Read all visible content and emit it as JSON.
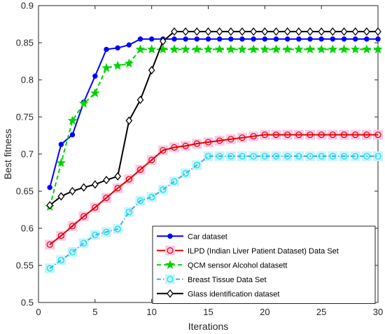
{
  "chart_data": {
    "type": "line",
    "xlabel": "Iterations",
    "ylabel": "Best fitness",
    "xlim": [
      0,
      30
    ],
    "ylim": [
      0.5,
      0.9
    ],
    "xticks": [
      0,
      5,
      10,
      15,
      20,
      25,
      30
    ],
    "yticks": [
      0.5,
      0.55,
      0.6,
      0.65,
      0.7,
      0.75,
      0.8,
      0.85,
      0.9
    ],
    "grid": false,
    "legend_position": "bottom-right",
    "x": [
      1,
      2,
      3,
      4,
      5,
      6,
      7,
      8,
      9,
      10,
      11,
      12,
      13,
      14,
      15,
      16,
      17,
      18,
      19,
      20,
      21,
      22,
      23,
      24,
      25,
      26,
      27,
      28,
      29,
      30
    ],
    "series": [
      {
        "name": "Car dataset",
        "color": "#0000ff",
        "line": "solid",
        "marker": "dot",
        "values": [
          0.655,
          0.713,
          0.726,
          0.77,
          0.805,
          0.841,
          0.843,
          0.847,
          0.855,
          0.855,
          0.855,
          0.855,
          0.855,
          0.855,
          0.855,
          0.855,
          0.855,
          0.855,
          0.855,
          0.855,
          0.855,
          0.855,
          0.855,
          0.855,
          0.855,
          0.855,
          0.855,
          0.855,
          0.855,
          0.855
        ]
      },
      {
        "name": "ILPD (Indian Liver Patient Dataset) Data Set",
        "color": "#e00000",
        "line": "solid",
        "marker": "circle",
        "halo": "#ffc8e6",
        "values": [
          0.578,
          0.59,
          0.603,
          0.616,
          0.628,
          0.641,
          0.654,
          0.666,
          0.679,
          0.692,
          0.705,
          0.709,
          0.711,
          0.714,
          0.716,
          0.718,
          0.72,
          0.722,
          0.724,
          0.726,
          0.726,
          0.726,
          0.726,
          0.726,
          0.726,
          0.726,
          0.726,
          0.726,
          0.726,
          0.726
        ]
      },
      {
        "name": "QCM sensor Alcohol datasett",
        "color": "#00d400",
        "line": "dashed",
        "marker": "star",
        "values": [
          0.629,
          0.688,
          0.745,
          0.768,
          0.782,
          0.816,
          0.819,
          0.822,
          0.841,
          0.841,
          0.841,
          0.841,
          0.841,
          0.841,
          0.841,
          0.841,
          0.841,
          0.841,
          0.841,
          0.841,
          0.841,
          0.841,
          0.841,
          0.841,
          0.841,
          0.841,
          0.841,
          0.841,
          0.841,
          0.841
        ]
      },
      {
        "name": "Breast Tissue Data Set",
        "color": "#4fa3e0",
        "line": "dashdot",
        "marker": "circle",
        "marker_color": "#00e5ee",
        "halo": "#c8f4fb",
        "values": [
          0.546,
          0.557,
          0.568,
          0.58,
          0.591,
          0.595,
          0.599,
          0.622,
          0.637,
          0.642,
          0.652,
          0.663,
          0.674,
          0.685,
          0.697,
          0.697,
          0.697,
          0.697,
          0.697,
          0.697,
          0.697,
          0.697,
          0.697,
          0.697,
          0.697,
          0.697,
          0.697,
          0.697,
          0.697,
          0.697
        ]
      },
      {
        "name": "Glass identification dataset",
        "color": "#000000",
        "line": "solid",
        "marker": "diamond",
        "values": [
          0.631,
          0.643,
          0.65,
          0.655,
          0.659,
          0.665,
          0.67,
          0.745,
          0.773,
          0.813,
          0.852,
          0.865,
          0.865,
          0.865,
          0.865,
          0.865,
          0.865,
          0.865,
          0.865,
          0.865,
          0.865,
          0.865,
          0.865,
          0.865,
          0.865,
          0.865,
          0.865,
          0.865,
          0.865,
          0.865
        ]
      }
    ]
  }
}
